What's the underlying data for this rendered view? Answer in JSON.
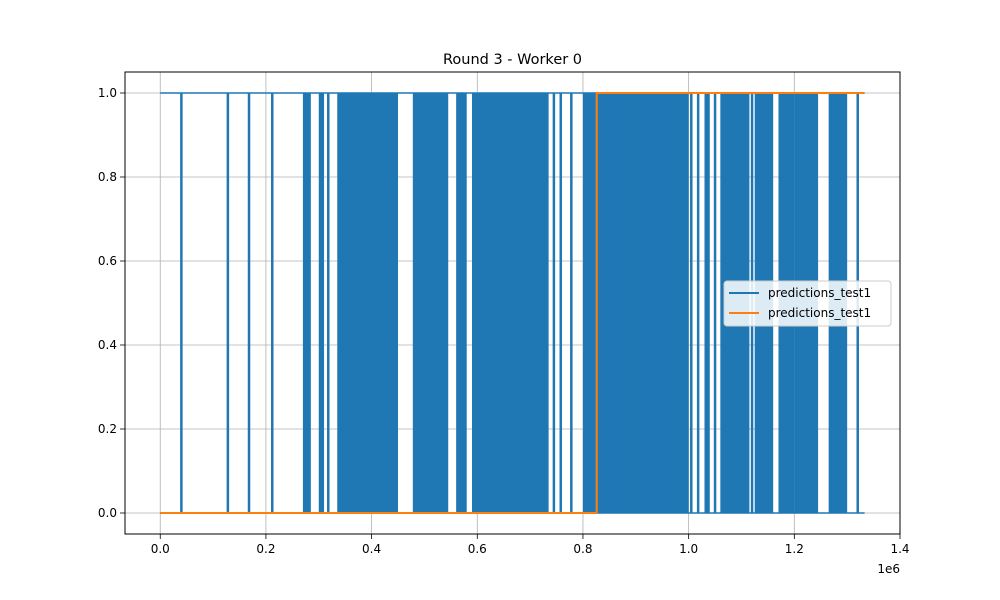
{
  "chart_data": {
    "type": "line",
    "title": "Round 3 - Worker 0",
    "xlabel": "",
    "ylabel": "",
    "x_offset_label": "1e6",
    "xlim": [
      -0.0667,
      1.4
    ],
    "ylim": [
      -0.05,
      1.05
    ],
    "xticks": [
      0.0,
      0.2,
      0.4,
      0.6,
      0.8,
      1.0,
      1.2,
      1.4
    ],
    "xtick_labels": [
      "0.0",
      "0.2",
      "0.4",
      "0.6",
      "0.8",
      "1.0",
      "1.2",
      "1.4"
    ],
    "yticks": [
      0.0,
      0.2,
      0.4,
      0.6,
      0.8,
      1.0
    ],
    "ytick_labels": [
      "0.0",
      "0.2",
      "0.4",
      "0.6",
      "0.8",
      "1.0"
    ],
    "grid": true,
    "legend_position": "center-right",
    "series": [
      {
        "name": "predictions_test1",
        "color": "#1f77b4",
        "style": "binary-switching",
        "x_start": 0.0,
        "x_end": 1.333,
        "dense_ranges": [
          [
            0.27,
            0.285
          ],
          [
            0.3,
            0.31
          ],
          [
            0.335,
            0.45
          ],
          [
            0.478,
            0.545
          ],
          [
            0.56,
            0.58
          ],
          [
            0.59,
            0.735
          ],
          [
            0.8,
            1.0
          ],
          [
            1.03,
            1.04
          ],
          [
            1.06,
            1.115
          ],
          [
            1.125,
            1.16
          ],
          [
            1.17,
            1.2
          ],
          [
            1.2,
            1.245
          ],
          [
            1.265,
            1.3
          ]
        ],
        "spike_positions": [
          0.04,
          0.128,
          0.168,
          0.212,
          0.318,
          0.745,
          0.758,
          0.778,
          0.87,
          0.92,
          0.96,
          1.005,
          1.018,
          1.05,
          1.12,
          1.32
        ]
      },
      {
        "name": "predictions_test1",
        "color": "#ff7f0e",
        "style": "step",
        "x": [
          0.0,
          0.826,
          0.826,
          1.333
        ],
        "y": [
          0.0,
          0.0,
          1.0,
          1.0
        ]
      }
    ]
  }
}
